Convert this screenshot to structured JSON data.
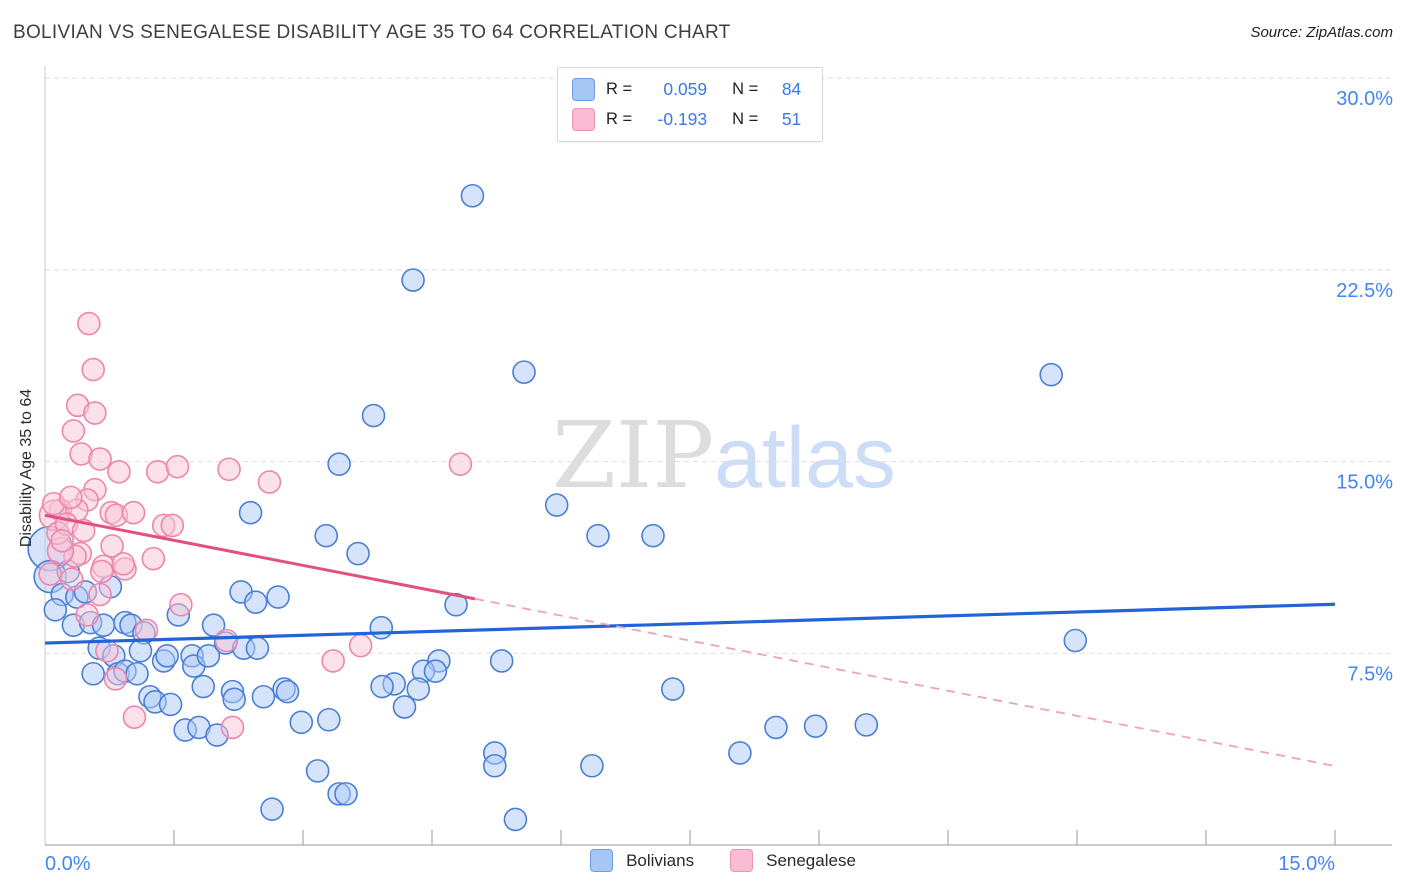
{
  "title": "BOLIVIAN VS SENEGALESE DISABILITY AGE 35 TO 64 CORRELATION CHART",
  "source": "Source: ZipAtlas.com",
  "y_axis_title": "Disability Age 35 to 64",
  "correlation_legend": {
    "rows": [
      {
        "series": "Bolivians",
        "r_label": "R =",
        "r_value": "0.059",
        "n_label": "N =",
        "n_value": "84"
      },
      {
        "series": "Senegalese",
        "r_label": "R =",
        "r_value": "-0.193",
        "n_label": "N =",
        "n_value": "51"
      }
    ]
  },
  "series_legend": {
    "items": [
      {
        "label": "Bolivians"
      },
      {
        "label": "Senegalese"
      }
    ]
  },
  "chart_data": {
    "type": "scatter",
    "title": "BOLIVIAN VS SENEGALESE DISABILITY AGE 35 TO 64 CORRELATION CHART",
    "xlabel": "",
    "ylabel": "Disability Age 35 to 64",
    "x_range": [
      0,
      15
    ],
    "y_range": [
      0,
      31.3
    ],
    "x_tick_step_pct": 1.5,
    "grid": "horizontal-dashed",
    "legend_position": "top-center-and-bottom",
    "axis_label_color": "#4285f4",
    "x_tick_labels": [
      {
        "value": 0,
        "label": "0.0%"
      },
      {
        "value": 15,
        "label": "15.0%"
      }
    ],
    "y_ticks": [
      {
        "value": 7.5,
        "label": "7.5%"
      },
      {
        "value": 15,
        "label": "15.0%"
      },
      {
        "value": 22.5,
        "label": "22.5%"
      },
      {
        "value": 30,
        "label": "30.0%"
      }
    ],
    "watermark": {
      "zip": "ZIP",
      "atlas": "atlas",
      "zip_color": "#dddde0",
      "atlas_color": "#cdddf8"
    },
    "series": [
      {
        "name": "Bolivians",
        "r": 0.059,
        "n": 84,
        "marker_fill": "#adc9f8",
        "marker_stroke": "#4a7fd4",
        "points": [
          [
            0.06,
            11.6,
            22
          ],
          [
            0.06,
            10.5,
            16
          ],
          [
            0.27,
            10.7
          ],
          [
            0.2,
            9.8
          ],
          [
            0.37,
            9.7
          ],
          [
            0.12,
            9.2
          ],
          [
            0.47,
            9.9
          ],
          [
            0.76,
            10.1
          ],
          [
            0.33,
            8.6
          ],
          [
            0.53,
            8.7
          ],
          [
            0.68,
            8.6
          ],
          [
            0.93,
            8.7
          ],
          [
            1.0,
            8.6
          ],
          [
            1.15,
            8.3
          ],
          [
            1.55,
            9.0
          ],
          [
            0.63,
            7.7
          ],
          [
            0.8,
            7.4
          ],
          [
            1.11,
            7.6
          ],
          [
            1.38,
            7.2
          ],
          [
            1.42,
            7.4
          ],
          [
            1.71,
            7.4
          ],
          [
            1.73,
            7.0
          ],
          [
            1.9,
            7.4
          ],
          [
            1.96,
            8.6
          ],
          [
            2.1,
            7.9
          ],
          [
            2.31,
            7.7
          ],
          [
            2.47,
            7.7
          ],
          [
            0.56,
            6.7
          ],
          [
            0.85,
            6.7
          ],
          [
            0.93,
            6.8
          ],
          [
            1.07,
            6.7
          ],
          [
            1.22,
            5.8
          ],
          [
            1.28,
            5.6
          ],
          [
            1.46,
            5.5
          ],
          [
            1.84,
            6.2
          ],
          [
            2.18,
            6.0
          ],
          [
            2.2,
            5.7
          ],
          [
            2.54,
            5.8
          ],
          [
            2.78,
            6.1
          ],
          [
            2.82,
            6.0
          ],
          [
            1.63,
            4.5
          ],
          [
            1.79,
            4.6
          ],
          [
            2.0,
            4.3
          ],
          [
            2.98,
            4.8
          ],
          [
            3.3,
            4.9
          ],
          [
            3.17,
            2.9
          ],
          [
            3.42,
            2.0
          ],
          [
            2.64,
            1.4
          ],
          [
            2.28,
            9.9
          ],
          [
            2.45,
            9.5
          ],
          [
            2.71,
            9.7
          ],
          [
            2.39,
            13.0
          ],
          [
            3.27,
            12.1
          ],
          [
            3.42,
            14.9
          ],
          [
            3.64,
            11.4
          ],
          [
            3.5,
            2.0
          ],
          [
            4.78,
            9.4
          ],
          [
            3.91,
            8.5
          ],
          [
            4.58,
            7.2
          ],
          [
            5.31,
            7.2
          ],
          [
            4.4,
            6.8
          ],
          [
            4.54,
            6.8
          ],
          [
            4.06,
            6.3
          ],
          [
            3.92,
            6.2
          ],
          [
            4.34,
            6.1
          ],
          [
            4.18,
            5.4
          ],
          [
            5.23,
            3.6
          ],
          [
            5.23,
            3.1
          ],
          [
            6.36,
            3.1
          ],
          [
            5.47,
            1.0
          ],
          [
            5.95,
            13.3
          ],
          [
            6.43,
            12.1
          ],
          [
            7.07,
            12.1
          ],
          [
            7.3,
            6.1
          ],
          [
            8.5,
            4.6
          ],
          [
            8.96,
            4.65
          ],
          [
            9.55,
            4.7
          ],
          [
            8.08,
            3.6
          ],
          [
            11.98,
            8.0
          ],
          [
            11.7,
            18.4
          ],
          [
            4.97,
            25.4
          ],
          [
            4.28,
            22.1
          ],
          [
            5.57,
            18.5
          ],
          [
            3.82,
            16.8
          ]
        ]
      },
      {
        "name": "Senegalese",
        "r": -0.193,
        "n": 51,
        "marker_fill": "#fac3d6",
        "marker_stroke": "#ef85ab",
        "points": [
          [
            0.51,
            20.4
          ],
          [
            0.56,
            18.6
          ],
          [
            0.38,
            17.2
          ],
          [
            0.58,
            16.9
          ],
          [
            0.33,
            16.2
          ],
          [
            0.42,
            15.3
          ],
          [
            0.64,
            15.1
          ],
          [
            0.86,
            14.6
          ],
          [
            1.31,
            14.6
          ],
          [
            1.54,
            14.8
          ],
          [
            2.14,
            14.7
          ],
          [
            2.61,
            14.2
          ],
          [
            4.83,
            14.9
          ],
          [
            0.58,
            13.9
          ],
          [
            0.49,
            13.5
          ],
          [
            0.18,
            13.1
          ],
          [
            0.11,
            12.9,
            15
          ],
          [
            0.37,
            13.1
          ],
          [
            0.77,
            13.0
          ],
          [
            0.83,
            12.9
          ],
          [
            1.03,
            13.0
          ],
          [
            1.38,
            12.5
          ],
          [
            1.48,
            12.5
          ],
          [
            0.78,
            11.7
          ],
          [
            0.41,
            11.4
          ],
          [
            0.35,
            11.3
          ],
          [
            0.18,
            11.5,
            13
          ],
          [
            0.68,
            10.9
          ],
          [
            0.93,
            10.8
          ],
          [
            1.26,
            11.2
          ],
          [
            0.31,
            10.4
          ],
          [
            0.06,
            10.6
          ],
          [
            0.66,
            10.7
          ],
          [
            0.91,
            11.0
          ],
          [
            0.49,
            9.0
          ],
          [
            0.64,
            9.8
          ],
          [
            1.58,
            9.4
          ],
          [
            1.18,
            8.4
          ],
          [
            0.72,
            7.6
          ],
          [
            0.82,
            6.5
          ],
          [
            2.11,
            8.0
          ],
          [
            1.04,
            5.0
          ],
          [
            2.18,
            4.6
          ],
          [
            3.35,
            7.2
          ],
          [
            3.67,
            7.8
          ],
          [
            0.15,
            12.2
          ],
          [
            0.25,
            12.55
          ],
          [
            0.2,
            11.9
          ],
          [
            0.1,
            13.35
          ],
          [
            0.45,
            12.3
          ],
          [
            0.3,
            13.6
          ]
        ]
      }
    ],
    "trend_lines": [
      {
        "name": "Bolivians fit",
        "style": "solid",
        "color": "#2264d8",
        "width": 3.2,
        "x1": 0,
        "y1": 7.9,
        "x2": 15,
        "y2": 9.42
      },
      {
        "name": "Senegalese fit",
        "style": "solid",
        "color": "#e2517e",
        "width": 3,
        "x1": 0,
        "y1": 12.9,
        "x2": 5.0,
        "y2": 9.63
      },
      {
        "name": "Senegalese fit extrapolated",
        "style": "dashed",
        "color": "#efa3ba",
        "width": 1.8,
        "x1": 5.0,
        "y1": 9.63,
        "x2": 15,
        "y2": 3.09
      }
    ]
  }
}
